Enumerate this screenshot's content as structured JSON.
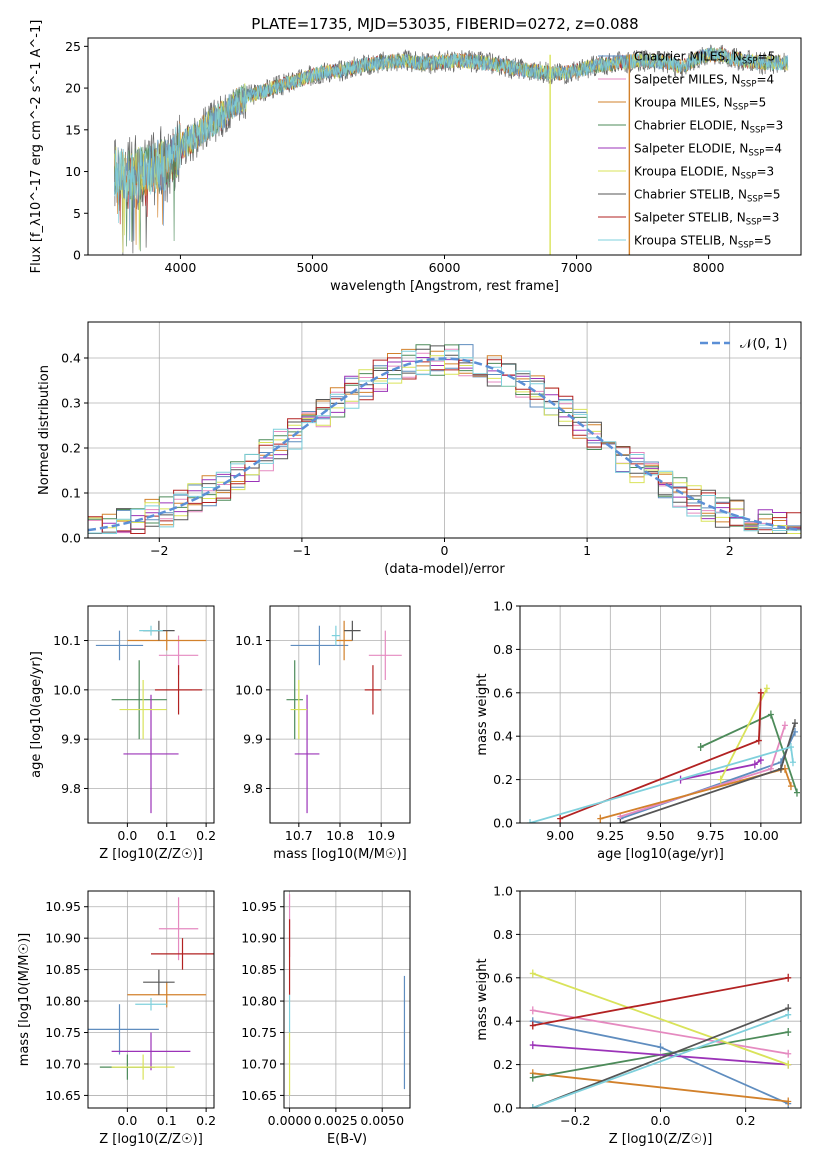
{
  "figure": {
    "title": "PLATE=1735, MJD=53035, FIBERID=0272, z=0.088"
  },
  "colors": {
    "Chabrier MILES": "#5f8dbf",
    "Salpeter MILES": "#e58ac0",
    "Kroupa MILES": "#d2812b",
    "Chabrier ELODIE": "#4d8b5a",
    "Salpeter ELODIE": "#9b33b8",
    "Kroupa ELODIE": "#d9e35a",
    "Chabrier STELIB": "#555555",
    "Salpeter STELIB": "#b22222",
    "Kroupa STELIB": "#7fd0dc"
  },
  "chart_data": [
    {
      "id": "spectrum",
      "type": "line",
      "ylabel": "Flux [f_λ10^-17 erg cm^-2 s^-1 A^-1]",
      "xlabel": "wavelength [Angstrom, rest frame]",
      "xlim": [
        3300,
        8700
      ],
      "ylim": [
        0,
        26
      ],
      "xticks": [
        4000,
        5000,
        6000,
        7000,
        8000
      ],
      "yticks": [
        0,
        5,
        10,
        15,
        20,
        25
      ],
      "grid": false,
      "legend_position": "top-right",
      "legend": [
        {
          "name": "Chabrier MILES",
          "nssp": "5"
        },
        {
          "name": "Salpeter MILES",
          "nssp": "4"
        },
        {
          "name": "Kroupa MILES",
          "nssp": "5"
        },
        {
          "name": "Chabrier ELODIE",
          "nssp": "3"
        },
        {
          "name": "Salpeter ELODIE",
          "nssp": "4"
        },
        {
          "name": "Kroupa ELODIE",
          "nssp": "3"
        },
        {
          "name": "Chabrier STELIB",
          "nssp": "5"
        },
        {
          "name": "Salpeter STELIB",
          "nssp": "3"
        },
        {
          "name": "Kroupa STELIB",
          "nssp": "5"
        }
      ],
      "continuum": {
        "x": [
          3500,
          3600,
          3700,
          3800,
          3900,
          4000,
          4100,
          4200,
          4300,
          4400,
          4500,
          4600,
          4700,
          4800,
          4900,
          5000,
          5100,
          5200,
          5300,
          5400,
          5500,
          5600,
          5700,
          5800,
          5900,
          6000,
          6100,
          6200,
          6300,
          6400,
          6500,
          6600,
          6700,
          6800,
          6900,
          7000,
          7100,
          7200,
          7300,
          7400,
          7500,
          7600,
          7700,
          7800,
          7900,
          8000,
          8100,
          8200,
          8300,
          8400,
          8500,
          8600
        ],
        "y": [
          10,
          9.5,
          10,
          10.5,
          11,
          13,
          14,
          15.5,
          16.5,
          18,
          19,
          19.5,
          20,
          20.5,
          21,
          21.5,
          22,
          22,
          22.5,
          22.8,
          23,
          23.2,
          23.3,
          23,
          23,
          23.2,
          23.3,
          23.2,
          23,
          22.8,
          22.5,
          22.2,
          22,
          21.8,
          21.8,
          22,
          22.5,
          22.8,
          23,
          23.2,
          23.3,
          23.2,
          23,
          22.5,
          23.5,
          24,
          24,
          23.5,
          23.2,
          23,
          23,
          23
        ]
      },
      "spike_lines": [
        {
          "x": 6800,
          "series": "Kroupa ELODIE"
        },
        {
          "x": 7400,
          "series": "Kroupa MILES"
        }
      ]
    },
    {
      "id": "residuals",
      "type": "step-histogram",
      "ylabel": "Normed distribution",
      "xlabel": "(data-model)/error",
      "xlim": [
        -2.5,
        2.5
      ],
      "ylim": [
        0,
        0.48
      ],
      "xticks": [
        -2,
        -1,
        0,
        1,
        2
      ],
      "yticks": [
        0.0,
        0.1,
        0.2,
        0.3,
        0.4
      ],
      "grid": true,
      "legend_position": "top-right",
      "legend": [
        {
          "name": "𝒩(0, 1)",
          "style": "dashed"
        }
      ],
      "bin_width": 0.1,
      "bin_start": -2.5,
      "nbins": 50
    },
    {
      "id": "age_vs_z",
      "type": "errorbar",
      "ylabel": "age [log10(age/yr)]",
      "xlabel": "Z [log10(Z/Z☉)]",
      "xlim": [
        -0.1,
        0.22
      ],
      "ylim": [
        9.73,
        10.17
      ],
      "xticks": [
        0.0,
        0.1,
        0.2
      ],
      "yticks": [
        9.8,
        9.9,
        10.0,
        10.1
      ],
      "grid": true,
      "points": [
        {
          "series": "Chabrier MILES",
          "x": -0.02,
          "y": 10.09,
          "xerr": 0.06,
          "yerr": 0.03
        },
        {
          "series": "Salpeter MILES",
          "x": 0.13,
          "y": 10.07,
          "xerr": 0.05,
          "yerr": 0.04
        },
        {
          "series": "Kroupa MILES",
          "x": 0.1,
          "y": 10.1,
          "xerr": 0.1,
          "yerr": 0.02
        },
        {
          "series": "Chabrier ELODIE",
          "x": 0.03,
          "y": 9.98,
          "xerr": 0.07,
          "yerr": 0.08
        },
        {
          "series": "Salpeter ELODIE",
          "x": 0.06,
          "y": 9.87,
          "xerr": 0.07,
          "yerr": 0.12
        },
        {
          "series": "Kroupa ELODIE",
          "x": 0.04,
          "y": 9.96,
          "xerr": 0.06,
          "yerr": 0.06
        },
        {
          "series": "Chabrier STELIB",
          "x": 0.08,
          "y": 10.12,
          "xerr": 0.04,
          "yerr": 0.02
        },
        {
          "series": "Salpeter STELIB",
          "x": 0.13,
          "y": 10.0,
          "xerr": 0.06,
          "yerr": 0.05
        },
        {
          "series": "Kroupa STELIB",
          "x": 0.06,
          "y": 10.12,
          "xerr": 0.03,
          "yerr": 0.01
        }
      ]
    },
    {
      "id": "age_vs_mass",
      "type": "errorbar",
      "xlabel": "mass [log10(M/M☉)]",
      "xlim": [
        10.63,
        10.97
      ],
      "ylim": [
        9.73,
        10.17
      ],
      "xticks": [
        10.7,
        10.8,
        10.9
      ],
      "yticks": [
        9.8,
        9.9,
        10.0,
        10.1
      ],
      "grid": true,
      "points": [
        {
          "series": "Chabrier MILES",
          "x": 10.75,
          "y": 10.09,
          "xerr": 0.07,
          "yerr": 0.04
        },
        {
          "series": "Salpeter MILES",
          "x": 10.91,
          "y": 10.07,
          "xerr": 0.04,
          "yerr": 0.05
        },
        {
          "series": "Kroupa MILES",
          "x": 10.81,
          "y": 10.1,
          "xerr": 0.02,
          "yerr": 0.04
        },
        {
          "series": "Chabrier ELODIE",
          "x": 10.69,
          "y": 9.98,
          "xerr": 0.02,
          "yerr": 0.08
        },
        {
          "series": "Salpeter ELODIE",
          "x": 10.72,
          "y": 9.87,
          "xerr": 0.03,
          "yerr": 0.12
        },
        {
          "series": "Kroupa ELODIE",
          "x": 10.7,
          "y": 9.96,
          "xerr": 0.02,
          "yerr": 0.06
        },
        {
          "series": "Chabrier STELIB",
          "x": 10.83,
          "y": 10.12,
          "xerr": 0.02,
          "yerr": 0.02
        },
        {
          "series": "Salpeter STELIB",
          "x": 10.88,
          "y": 10.0,
          "xerr": 0.02,
          "yerr": 0.05
        },
        {
          "series": "Kroupa STELIB",
          "x": 10.79,
          "y": 10.11,
          "xerr": 0.01,
          "yerr": 0.02
        }
      ]
    },
    {
      "id": "weight_vs_age",
      "type": "line",
      "ylabel": "mass weight",
      "xlabel": "age [log10(age/yr)]",
      "xlim": [
        8.8,
        10.2
      ],
      "ylim": [
        0,
        1
      ],
      "xticks": [
        9.0,
        9.25,
        9.5,
        9.75,
        10.0
      ],
      "yticks": [
        0.0,
        0.2,
        0.4,
        0.6,
        0.8,
        1.0
      ],
      "grid": true,
      "series": [
        {
          "name": "Chabrier MILES",
          "x": [
            9.3,
            10.1,
            10.17
          ],
          "y": [
            0.02,
            0.28,
            0.42
          ]
        },
        {
          "name": "Salpeter MILES",
          "x": [
            9.3,
            10.05,
            10.12
          ],
          "y": [
            0.03,
            0.25,
            0.45
          ]
        },
        {
          "name": "Kroupa MILES",
          "x": [
            9.2,
            10.12,
            10.15
          ],
          "y": [
            0.02,
            0.25,
            0.17
          ]
        },
        {
          "name": "Chabrier ELODIE",
          "x": [
            9.7,
            10.05,
            10.18
          ],
          "y": [
            0.35,
            0.5,
            0.14
          ]
        },
        {
          "name": "Salpeter ELODIE",
          "x": [
            9.6,
            9.97,
            10.0
          ],
          "y": [
            0.2,
            0.27,
            0.29
          ]
        },
        {
          "name": "Kroupa ELODIE",
          "x": [
            9.8,
            10.03
          ],
          "y": [
            0.2,
            0.62
          ]
        },
        {
          "name": "Chabrier STELIB",
          "x": [
            9.3,
            10.1,
            10.17
          ],
          "y": [
            0.0,
            0.25,
            0.46
          ]
        },
        {
          "name": "Salpeter STELIB",
          "x": [
            9.0,
            9.99,
            10.0
          ],
          "y": [
            0.02,
            0.38,
            0.6
          ]
        },
        {
          "name": "Kroupa STELIB",
          "x": [
            8.85,
            10.15,
            10.16
          ],
          "y": [
            0.0,
            0.35,
            0.28
          ]
        }
      ]
    },
    {
      "id": "mass_vs_z",
      "type": "errorbar",
      "ylabel": "mass [log10(M/M☉)]",
      "xlabel": "Z [log10(Z/Z☉)]",
      "xlim": [
        -0.1,
        0.22
      ],
      "ylim": [
        10.63,
        10.975
      ],
      "xticks": [
        0.0,
        0.1,
        0.2
      ],
      "yticks": [
        10.65,
        10.7,
        10.75,
        10.8,
        10.85,
        10.9,
        10.95
      ],
      "grid": true,
      "points": [
        {
          "series": "Chabrier MILES",
          "x": -0.02,
          "y": 10.755,
          "xerr": 0.1,
          "yerr": 0.04
        },
        {
          "series": "Salpeter MILES",
          "x": 0.13,
          "y": 10.915,
          "xerr": 0.05,
          "yerr": 0.05
        },
        {
          "series": "Kroupa MILES",
          "x": 0.1,
          "y": 10.81,
          "xerr": 0.1,
          "yerr": 0.02
        },
        {
          "series": "Chabrier ELODIE",
          "x": 0.0,
          "y": 10.695,
          "xerr": 0.07,
          "yerr": 0.02
        },
        {
          "series": "Salpeter ELODIE",
          "x": 0.06,
          "y": 10.72,
          "xerr": 0.1,
          "yerr": 0.03
        },
        {
          "series": "Kroupa ELODIE",
          "x": 0.04,
          "y": 10.695,
          "xerr": 0.08,
          "yerr": 0.02
        },
        {
          "series": "Chabrier STELIB",
          "x": 0.08,
          "y": 10.83,
          "xerr": 0.04,
          "yerr": 0.02
        },
        {
          "series": "Salpeter STELIB",
          "x": 0.14,
          "y": 10.875,
          "xerr": 0.08,
          "yerr": 0.025
        },
        {
          "series": "Kroupa STELIB",
          "x": 0.06,
          "y": 10.795,
          "xerr": 0.04,
          "yerr": 0.01
        }
      ]
    },
    {
      "id": "mass_vs_ebv",
      "type": "errorbar",
      "xlabel": "E(B-V)",
      "xlim": [
        -0.0003,
        0.0065
      ],
      "ylim": [
        10.63,
        10.975
      ],
      "xticks": [
        0.0,
        0.0025,
        0.005
      ],
      "xticklabels": [
        "0.0000",
        "0.0025",
        "0.0050"
      ],
      "yticks": [
        10.65,
        10.7,
        10.75,
        10.8,
        10.85,
        10.9,
        10.95
      ],
      "grid": true,
      "points": [
        {
          "series": "Chabrier MILES",
          "x": 0.0062,
          "y": 10.75,
          "xerr": 0.0,
          "yerr": 0.09
        },
        {
          "series": "Salpeter MILES",
          "x": 0.0,
          "y": 10.92,
          "xerr": 0.0,
          "yerr": 0.05
        },
        {
          "series": "Salpeter STELIB",
          "x": 0.0,
          "y": 10.87,
          "xerr": 0.0,
          "yerr": 0.06
        },
        {
          "series": "Kroupa ELODIE",
          "x": 0.0,
          "y": 10.7,
          "xerr": 0.0,
          "yerr": 0.05
        },
        {
          "series": "Kroupa STELIB",
          "x": 0.0,
          "y": 10.78,
          "xerr": 0.0,
          "yerr": 0.03
        }
      ]
    },
    {
      "id": "weight_vs_z",
      "type": "line",
      "ylabel": "mass weight",
      "xlabel": "Z [log10(Z/Z☉)]",
      "xlim": [
        -0.33,
        0.33
      ],
      "ylim": [
        0,
        1
      ],
      "xticks": [
        -0.2,
        0.0,
        0.2
      ],
      "yticks": [
        0.0,
        0.2,
        0.4,
        0.6,
        0.8,
        1.0
      ],
      "grid": true,
      "series": [
        {
          "name": "Chabrier MILES",
          "x": [
            -0.3,
            0.0,
            0.3
          ],
          "y": [
            0.4,
            0.28,
            0.02
          ]
        },
        {
          "name": "Salpeter MILES",
          "x": [
            -0.3,
            0.3
          ],
          "y": [
            0.45,
            0.25
          ]
        },
        {
          "name": "Kroupa MILES",
          "x": [
            -0.3,
            0.3
          ],
          "y": [
            0.16,
            0.03
          ]
        },
        {
          "name": "Chabrier ELODIE",
          "x": [
            -0.3,
            0.3
          ],
          "y": [
            0.14,
            0.35
          ]
        },
        {
          "name": "Salpeter ELODIE",
          "x": [
            -0.3,
            0.3
          ],
          "y": [
            0.29,
            0.2
          ]
        },
        {
          "name": "Kroupa ELODIE",
          "x": [
            -0.3,
            0.3
          ],
          "y": [
            0.62,
            0.2
          ]
        },
        {
          "name": "Chabrier STELIB",
          "x": [
            -0.3,
            0.3
          ],
          "y": [
            0.0,
            0.46
          ]
        },
        {
          "name": "Salpeter STELIB",
          "x": [
            -0.3,
            0.3
          ],
          "y": [
            0.38,
            0.6
          ]
        },
        {
          "name": "Kroupa STELIB",
          "x": [
            -0.3,
            0.3
          ],
          "y": [
            0.0,
            0.43
          ]
        }
      ]
    }
  ]
}
